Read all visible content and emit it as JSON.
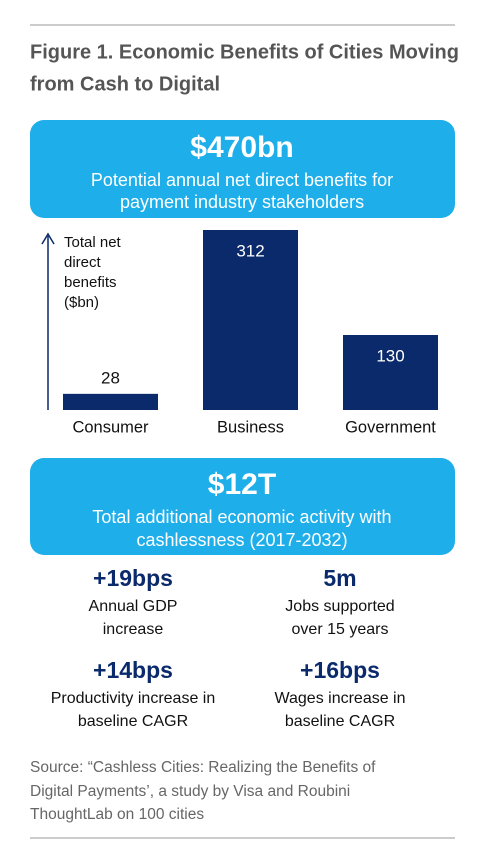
{
  "title": [
    "Figure 1. Economic Benefits of Cities Moving",
    "from Cash to Digital"
  ],
  "banner_1": {
    "headline": "$470bn",
    "text": [
      "Potential annual net direct benefits for",
      "payment industry stakeholders"
    ]
  },
  "chart_data": {
    "type": "bar",
    "y_label": [
      "Total net",
      "direct",
      "benefits",
      "($bn)"
    ],
    "categories": [
      "Consumer",
      "Business",
      "Government"
    ],
    "values": [
      28,
      312,
      130
    ],
    "color": "#0a2a6c"
  },
  "banner_2": {
    "headline": "$12T",
    "text": [
      "Total additional economic activity with",
      "cashlessness (2017-2032)"
    ]
  },
  "stats": [
    {
      "value": "+19bps",
      "text": [
        "Annual GDP",
        "increase"
      ]
    },
    {
      "value": "5m",
      "text": [
        "Jobs supported",
        "over 15 years"
      ]
    },
    {
      "value": "+14bps",
      "text": [
        "Productivity increase in",
        "baseline CAGR"
      ]
    },
    {
      "value": "+16bps",
      "text": [
        "Wages increase in",
        "baseline CAGR"
      ]
    }
  ],
  "source": [
    "Source: “Cashless Cities: Realizing the Benefits of",
    "Digital Payments’, a study by Visa and Roubini",
    "ThoughtLab on 100 cities"
  ]
}
